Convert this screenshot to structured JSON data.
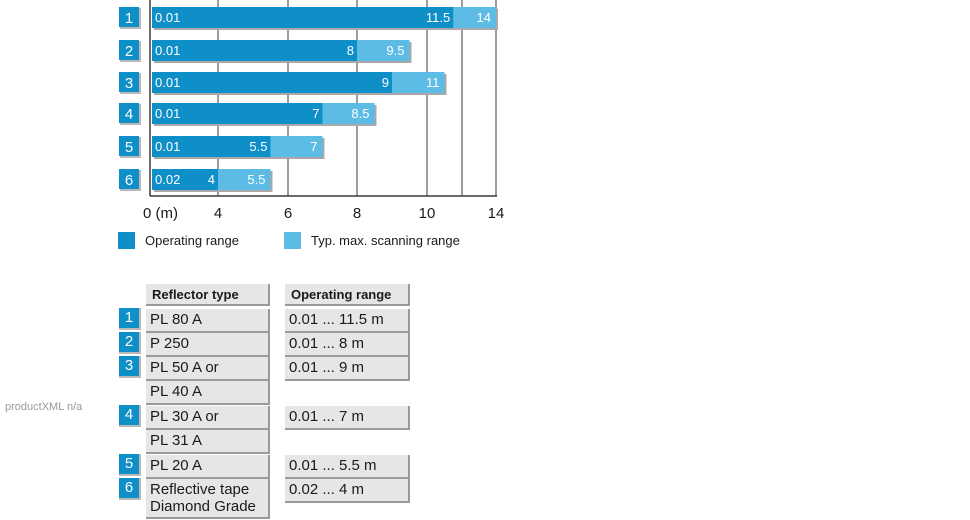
{
  "chart_data": {
    "type": "bar",
    "orientation": "horizontal",
    "stacked": true,
    "categories": [
      "1",
      "2",
      "3",
      "4",
      "5",
      "6"
    ],
    "start_labels": [
      "0.01",
      "0.01",
      "0.01",
      "0.01",
      "0.01",
      "0.02"
    ],
    "series": [
      {
        "name": "Operating range",
        "color": "#0f8fc8",
        "values": [
          11.5,
          8,
          9,
          7,
          5.5,
          4
        ],
        "labels": [
          "11.5",
          "8",
          "9",
          "7",
          "5.5",
          "4"
        ]
      },
      {
        "name": "Typ. max. scanning range",
        "color": "#5cbce6",
        "values": [
          14,
          9.5,
          11,
          8.5,
          7,
          5.5
        ],
        "labels": [
          "14",
          "9.5",
          "11",
          "8.5",
          "7",
          "5.5"
        ]
      }
    ],
    "x_axis": {
      "ticks": [
        0,
        4,
        6,
        8,
        10,
        14
      ],
      "tick_labels": [
        "0 (m)",
        "4",
        "6",
        "8",
        "10",
        "14"
      ],
      "gridlines": [
        4,
        6,
        8,
        10,
        12,
        14
      ],
      "grid": true
    },
    "legend_position": "bottom-left"
  },
  "legend": {
    "operating_label": "Operating range",
    "scanning_label": "Typ. max. scanning range",
    "operating_color": "#0f8fc8",
    "scanning_color": "#5cbce6"
  },
  "watermark": "productXML n/a",
  "table": {
    "header_reflector": "Reflector type",
    "header_range": "Operating range",
    "rows": [
      {
        "num": "1",
        "reflector": "PL 80 A",
        "range": "0.01 ... 11.5 m"
      },
      {
        "num": "2",
        "reflector": "P 250",
        "range": "0.01 ... 8 m"
      },
      {
        "num": "3",
        "reflector": "PL 50 A or",
        "reflector2": "PL 40 A",
        "range": "0.01 ... 9 m"
      },
      {
        "num": "4",
        "reflector": "PL 30 A or",
        "reflector2": "PL 31 A",
        "range": "0.01 ... 7 m"
      },
      {
        "num": "5",
        "reflector": "PL 20 A",
        "range": "0.01 ... 5.5 m"
      },
      {
        "num": "6",
        "reflector": "Reflective tape",
        "reflector2": "Diamond Grade",
        "range": "0.02 ... 4 m"
      }
    ]
  }
}
